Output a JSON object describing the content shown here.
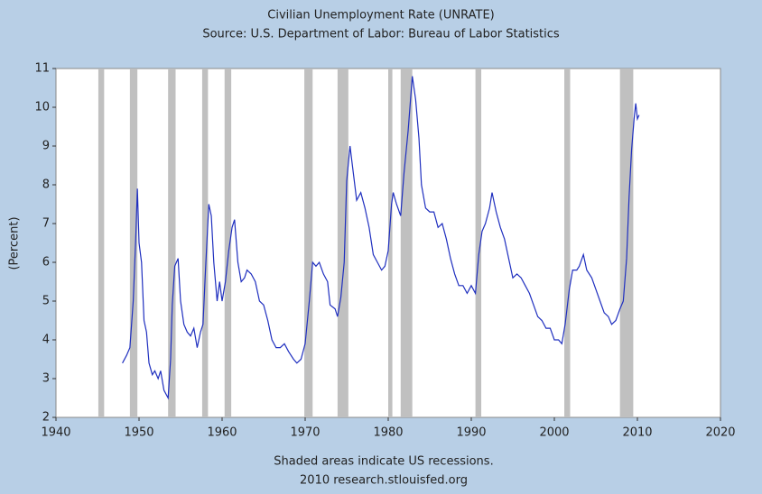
{
  "chart_data": {
    "type": "line",
    "title": "Civilian Unemployment Rate (UNRATE)",
    "subtitle": "Source: U.S. Department of Labor: Bureau of Labor Statistics",
    "y_label": "(Percent)",
    "footnote": "Shaded areas indicate US recessions.",
    "source": "2010 research.stlouisfed.org",
    "xlim": [
      1940,
      2020
    ],
    "xticks": [
      1940,
      1950,
      1960,
      1970,
      1980,
      1990,
      2000,
      2010,
      2020
    ],
    "ylim": [
      2,
      11
    ],
    "yticks": [
      2,
      3,
      4,
      5,
      6,
      7,
      8,
      9,
      10,
      11
    ],
    "grid": false,
    "recession_color": "#c0c0c0",
    "recessions": [
      [
        1945.1,
        1945.8
      ],
      [
        1948.9,
        1949.8
      ],
      [
        1953.5,
        1954.4
      ],
      [
        1957.6,
        1958.3
      ],
      [
        1960.3,
        1961.1
      ],
      [
        1969.9,
        1970.9
      ],
      [
        1973.9,
        1975.2
      ],
      [
        1980.0,
        1980.5
      ],
      [
        1981.5,
        1982.9
      ],
      [
        1990.5,
        1991.2
      ],
      [
        2001.2,
        2001.9
      ],
      [
        2007.9,
        2009.5
      ]
    ],
    "series": [
      {
        "name": "UNRATE",
        "color": "#1f2fbf",
        "x": [
          1948.0,
          1948.5,
          1948.9,
          1949.3,
          1949.6,
          1949.8,
          1950.0,
          1950.3,
          1950.6,
          1950.9,
          1951.2,
          1951.6,
          1951.9,
          1952.3,
          1952.6,
          1953.0,
          1953.5,
          1953.8,
          1954.0,
          1954.3,
          1954.7,
          1955.0,
          1955.4,
          1955.8,
          1956.2,
          1956.6,
          1957.0,
          1957.4,
          1957.7,
          1958.0,
          1958.4,
          1958.7,
          1959.0,
          1959.4,
          1959.7,
          1960.0,
          1960.4,
          1960.8,
          1961.2,
          1961.5,
          1961.9,
          1962.3,
          1962.7,
          1963.0,
          1963.5,
          1964.0,
          1964.5,
          1965.0,
          1965.5,
          1966.0,
          1966.5,
          1967.0,
          1967.5,
          1968.0,
          1968.6,
          1969.0,
          1969.5,
          1970.0,
          1970.5,
          1970.9,
          1971.3,
          1971.7,
          1972.2,
          1972.7,
          1973.0,
          1973.6,
          1973.9,
          1974.3,
          1974.7,
          1975.0,
          1975.4,
          1975.8,
          1976.2,
          1976.7,
          1977.2,
          1977.7,
          1978.2,
          1978.7,
          1979.2,
          1979.6,
          1980.0,
          1980.4,
          1980.6,
          1981.0,
          1981.5,
          1981.9,
          1982.4,
          1982.9,
          1983.3,
          1983.7,
          1984.0,
          1984.5,
          1985.0,
          1985.5,
          1986.0,
          1986.5,
          1987.0,
          1987.5,
          1988.0,
          1988.5,
          1989.0,
          1989.5,
          1990.0,
          1990.5,
          1990.9,
          1991.3,
          1991.7,
          1992.2,
          1992.5,
          1993.0,
          1993.5,
          1994.0,
          1994.5,
          1995.0,
          1995.5,
          1996.0,
          1996.5,
          1997.0,
          1997.5,
          1998.0,
          1998.5,
          1999.0,
          1999.5,
          2000.0,
          2000.5,
          2000.9,
          2001.3,
          2001.8,
          2002.2,
          2002.7,
          2003.0,
          2003.5,
          2003.9,
          2004.5,
          2005.0,
          2005.5,
          2006.0,
          2006.5,
          2006.9,
          2007.4,
          2007.9,
          2008.3,
          2008.7,
          2009.0,
          2009.3,
          2009.6,
          2009.8,
          2010.0,
          2010.2
        ],
        "values": [
          3.4,
          3.6,
          3.8,
          5.0,
          6.6,
          7.9,
          6.5,
          6.0,
          4.5,
          4.2,
          3.4,
          3.1,
          3.2,
          3.0,
          3.2,
          2.7,
          2.5,
          3.5,
          4.9,
          5.9,
          6.1,
          5.0,
          4.4,
          4.2,
          4.1,
          4.3,
          3.8,
          4.2,
          4.4,
          5.8,
          7.5,
          7.2,
          6.0,
          5.0,
          5.5,
          5.0,
          5.5,
          6.3,
          6.9,
          7.1,
          6.0,
          5.5,
          5.6,
          5.8,
          5.7,
          5.5,
          5.0,
          4.9,
          4.5,
          4.0,
          3.8,
          3.8,
          3.9,
          3.7,
          3.5,
          3.4,
          3.5,
          3.9,
          5.0,
          6.0,
          5.9,
          6.0,
          5.7,
          5.5,
          4.9,
          4.8,
          4.6,
          5.1,
          6.0,
          8.1,
          9.0,
          8.3,
          7.6,
          7.8,
          7.4,
          6.9,
          6.2,
          6.0,
          5.8,
          5.9,
          6.3,
          7.5,
          7.8,
          7.5,
          7.2,
          8.3,
          9.4,
          10.8,
          10.2,
          9.2,
          8.0,
          7.4,
          7.3,
          7.3,
          6.9,
          7.0,
          6.6,
          6.1,
          5.7,
          5.4,
          5.4,
          5.2,
          5.4,
          5.2,
          6.2,
          6.8,
          7.0,
          7.4,
          7.8,
          7.3,
          6.9,
          6.6,
          6.1,
          5.6,
          5.7,
          5.6,
          5.4,
          5.2,
          4.9,
          4.6,
          4.5,
          4.3,
          4.3,
          4.0,
          4.0,
          3.9,
          4.4,
          5.3,
          5.8,
          5.8,
          5.9,
          6.2,
          5.8,
          5.6,
          5.3,
          5.0,
          4.7,
          4.6,
          4.4,
          4.5,
          4.8,
          5.0,
          6.1,
          7.7,
          8.9,
          9.7,
          10.1,
          9.7,
          9.8
        ]
      }
    ]
  }
}
